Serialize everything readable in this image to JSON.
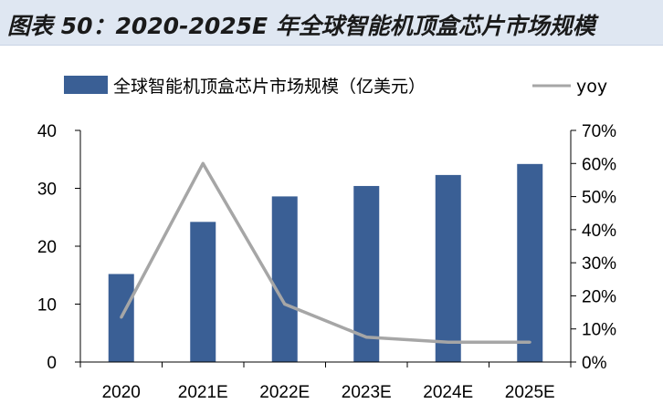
{
  "title": "图表 50：2020-2025E 年全球智能机顶盒芯片市场规模",
  "chart_data": {
    "type": "bar",
    "categories": [
      "2020",
      "2021E",
      "2022E",
      "2023E",
      "2024E",
      "2025E"
    ],
    "series": [
      {
        "name": "全球智能机顶盒芯片市场规模（亿美元）",
        "type": "bar",
        "axis": "left",
        "color": "#3a5f95",
        "values": [
          15.2,
          24.2,
          28.6,
          30.4,
          32.3,
          34.2
        ]
      },
      {
        "name": "yoy",
        "type": "line",
        "axis": "right",
        "color": "#a6a6a6",
        "values": [
          13.5,
          60,
          17.5,
          7.5,
          6,
          6
        ]
      }
    ],
    "y_left": {
      "ylim": [
        0,
        40
      ],
      "ticks": [
        "0",
        "10",
        "20",
        "30",
        "40"
      ],
      "values": [
        0,
        10,
        20,
        30,
        40
      ]
    },
    "y_right": {
      "ylim": [
        0,
        70
      ],
      "ticks": [
        "0%",
        "10%",
        "20%",
        "30%",
        "40%",
        "50%",
        "60%",
        "70%"
      ],
      "values": [
        0,
        10,
        20,
        30,
        40,
        50,
        60,
        70
      ]
    },
    "legend_position": "top",
    "grid": false
  }
}
